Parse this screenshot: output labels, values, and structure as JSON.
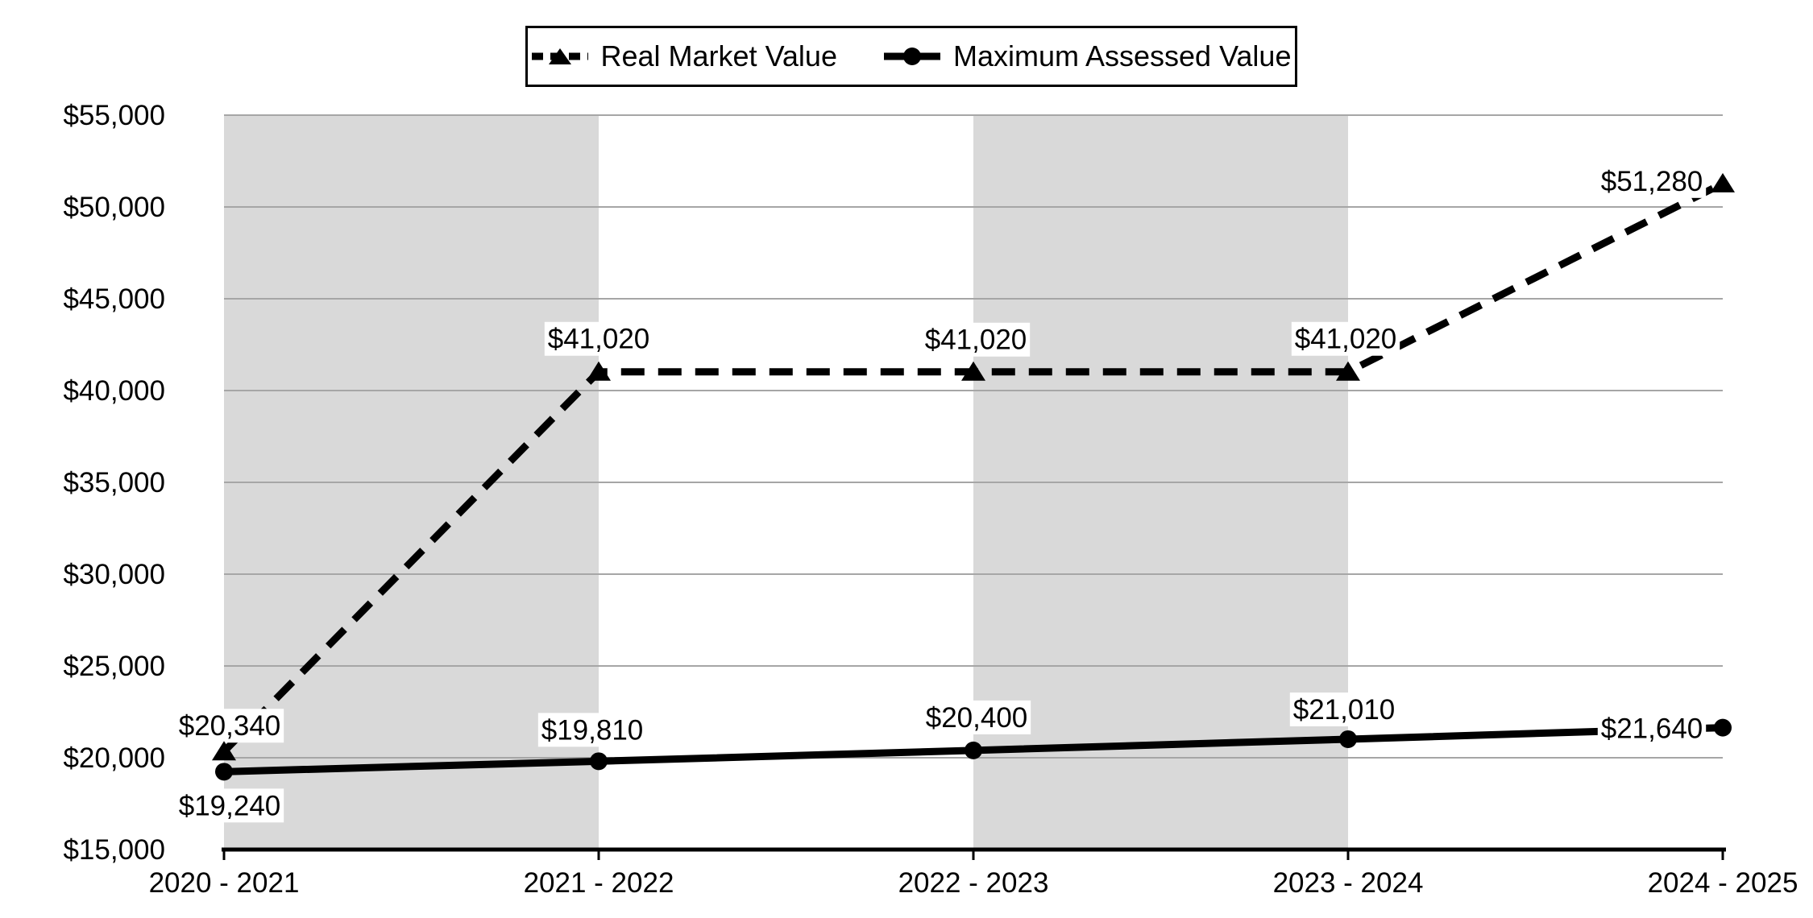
{
  "legend": {
    "items": [
      {
        "label": "Real Market Value",
        "marker": "dashed-line-triangle"
      },
      {
        "label": "Maximum Assessed Value",
        "marker": "solid-line-circle"
      }
    ]
  },
  "chart_data": {
    "type": "line",
    "title": "",
    "xlabel": "",
    "ylabel": "",
    "categories": [
      "2020 - 2021",
      "2021 - 2022",
      "2022 - 2023",
      "2023 - 2024",
      "2024 - 2025"
    ],
    "series": [
      {
        "name": "Real Market Value",
        "line_style": "dashed",
        "marker": "triangle",
        "color": "#000000",
        "values": [
          20340,
          41020,
          41020,
          41020,
          51280
        ],
        "labels": [
          "$20,340",
          "$41,020",
          "$41,020",
          "$41,020",
          "$51,280"
        ],
        "label_offsets": [
          [
            7,
            -32
          ],
          [
            0,
            -41
          ],
          [
            3,
            -40
          ],
          [
            -3,
            -41
          ],
          [
            -88,
            -3
          ]
        ]
      },
      {
        "name": "Maximum Assessed Value",
        "line_style": "solid",
        "marker": "circle",
        "color": "#000000",
        "values": [
          19240,
          19810,
          20400,
          21010,
          21640
        ],
        "labels": [
          "$19,240",
          "$19,810",
          "$20,400",
          "$21,010",
          "$21,640"
        ],
        "label_offsets": [
          [
            7,
            42
          ],
          [
            -8,
            -39
          ],
          [
            4,
            -41
          ],
          [
            -5,
            -37
          ],
          [
            -88,
            1
          ]
        ]
      }
    ],
    "ylim": [
      15000,
      55000
    ],
    "ytick_step": 5000,
    "ytick_values": [
      55000,
      50000,
      45000,
      40000,
      35000,
      30000,
      25000,
      20000,
      15000
    ],
    "ytick_labels": [
      "$55,000",
      "$50,000",
      "$45,000",
      "$40,000",
      "$35,000",
      "$30,000",
      "$25,000",
      "$20,000",
      "$15,000"
    ],
    "grid": true,
    "legend_position": "top-center",
    "shaded_bands": [
      [
        0,
        1
      ],
      [
        2,
        3
      ]
    ],
    "colors": {
      "band": "#d9d9d9",
      "gridline": "#a6a6a6",
      "axis": "#000000",
      "series": "#000000",
      "label_background": "#ffffff",
      "text": "#000000"
    }
  }
}
